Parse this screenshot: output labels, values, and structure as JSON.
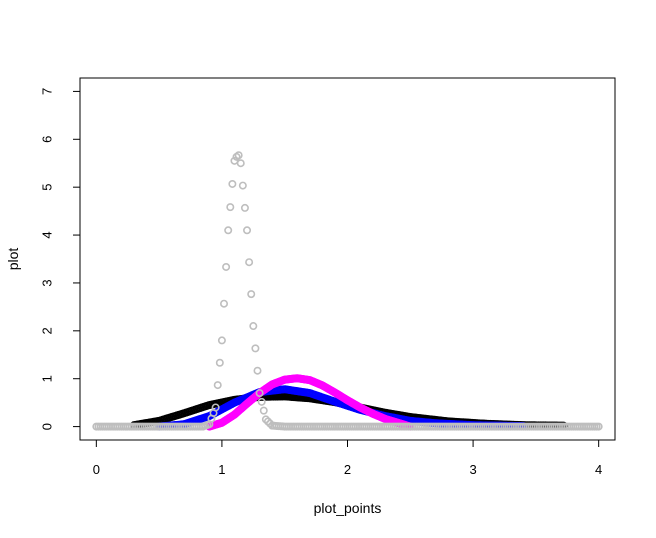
{
  "chart_data": {
    "type": "scatter",
    "title": "",
    "xlabel": "plot_points",
    "ylabel": "plot",
    "xlim": [
      -0.13,
      4.13
    ],
    "ylim": [
      -0.28,
      7.28
    ],
    "x_ticks": [
      0,
      1,
      2,
      3,
      4
    ],
    "y_ticks": [
      0,
      1,
      2,
      3,
      4,
      5,
      6,
      7
    ],
    "x_tick_labels": [
      "0",
      "1",
      "2",
      "3",
      "4"
    ],
    "y_tick_labels": [
      "0",
      "1",
      "2",
      "3",
      "4",
      "5",
      "6",
      "7"
    ],
    "grid": false,
    "legend": "none",
    "marker": "open-circle",
    "series": [
      {
        "color": "#000000",
        "x": [
          0.3,
          0.5,
          0.7,
          0.9,
          1.1,
          1.3,
          1.5,
          1.7,
          1.9,
          2.1,
          2.3,
          2.5,
          2.8,
          3.1,
          3.4,
          3.72
        ],
        "values": [
          0.03,
          0.12,
          0.28,
          0.45,
          0.56,
          0.62,
          0.63,
          0.59,
          0.51,
          0.4,
          0.29,
          0.2,
          0.11,
          0.06,
          0.03,
          0.02
        ]
      },
      {
        "color": "#0000FF",
        "x": [
          0.5,
          0.7,
          0.9,
          1.1,
          1.3,
          1.5,
          1.7,
          1.9,
          2.1,
          2.3,
          2.5,
          2.7,
          3.0,
          3.4
        ],
        "values": [
          0.0,
          0.05,
          0.22,
          0.5,
          0.72,
          0.78,
          0.7,
          0.52,
          0.35,
          0.22,
          0.12,
          0.07,
          0.03,
          0.01
        ]
      },
      {
        "color": "#FF00FF",
        "x": [
          0.9,
          1.0,
          1.1,
          1.2,
          1.3,
          1.4,
          1.5,
          1.6,
          1.7,
          1.8,
          1.9,
          2.0,
          2.1,
          2.2,
          2.3,
          2.4,
          2.5
        ],
        "values": [
          0.0,
          0.08,
          0.25,
          0.48,
          0.7,
          0.88,
          0.98,
          1.01,
          0.97,
          0.86,
          0.71,
          0.55,
          0.4,
          0.27,
          0.16,
          0.08,
          0.0
        ]
      },
      {
        "color": "#BEBEBE",
        "x": [
          0.0,
          0.5,
          0.85,
          0.9,
          0.95,
          1.0,
          1.05,
          1.1,
          1.13,
          1.15,
          1.2,
          1.25,
          1.3,
          1.35,
          1.4,
          1.5,
          2.0,
          3.0,
          4.0
        ],
        "values": [
          0.0,
          0.0,
          0.0,
          0.05,
          0.4,
          1.8,
          4.1,
          5.55,
          5.7,
          5.5,
          4.1,
          2.1,
          0.7,
          0.15,
          0.02,
          0.0,
          0.0,
          0.0,
          0.0
        ]
      }
    ]
  }
}
